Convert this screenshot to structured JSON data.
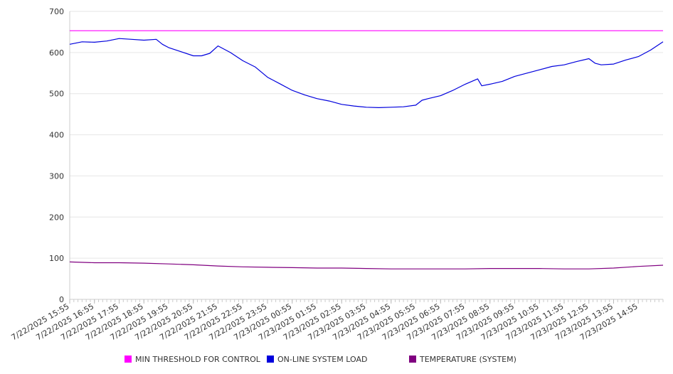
{
  "chart_data": {
    "type": "line",
    "title": "",
    "xlabel": "",
    "ylabel": "",
    "ylim": [
      0,
      700
    ],
    "yticks": [
      0,
      100,
      200,
      300,
      400,
      500,
      600,
      700
    ],
    "grid": true,
    "legend_position": "bottom",
    "x_tick_labels": [
      "7/22/2025 15:55",
      "7/22/2025 16:55",
      "7/22/2025 17:55",
      "7/22/2025 18:55",
      "7/22/2025 19:55",
      "7/22/2025 20:55",
      "7/22/2025 21:55",
      "7/22/2025 22:55",
      "7/22/2025 23:55",
      "7/23/2025 00:55",
      "7/23/2025 01:55",
      "7/23/2025 02:55",
      "7/23/2025 03:55",
      "7/23/2025 04:55",
      "7/23/2025 05:55",
      "7/23/2025 06:55",
      "7/23/2025 07:55",
      "7/23/2025 08:55",
      "7/23/2025 09:55",
      "7/23/2025 10:55",
      "7/23/2025 11:55",
      "7/23/2025 12:55",
      "7/23/2025 13:55",
      "7/23/2025 14:55"
    ],
    "series": [
      {
        "name": "MIN THRESHOLD FOR CONTROL",
        "color": "#ff00ff",
        "points": [
          [
            "7/22/2025 15:55",
            653
          ],
          [
            "7/23/2025 15:55",
            653
          ]
        ]
      },
      {
        "name": "ON-LINE SYSTEM LOAD",
        "color": "#0000dd",
        "points": [
          [
            "7/22/2025 15:55",
            620
          ],
          [
            "7/22/2025 16:25",
            626
          ],
          [
            "7/22/2025 16:55",
            625
          ],
          [
            "7/22/2025 17:25",
            628
          ],
          [
            "7/22/2025 17:55",
            634
          ],
          [
            "7/22/2025 18:25",
            632
          ],
          [
            "7/22/2025 18:55",
            630
          ],
          [
            "7/22/2025 19:25",
            632
          ],
          [
            "7/22/2025 19:40",
            620
          ],
          [
            "7/22/2025 19:55",
            612
          ],
          [
            "7/22/2025 20:25",
            602
          ],
          [
            "7/22/2025 20:55",
            592
          ],
          [
            "7/22/2025 21:15",
            592
          ],
          [
            "7/22/2025 21:35",
            598
          ],
          [
            "7/22/2025 21:55",
            616
          ],
          [
            "7/22/2025 22:25",
            600
          ],
          [
            "7/22/2025 22:55",
            580
          ],
          [
            "7/22/2025 23:25",
            565
          ],
          [
            "7/22/2025 23:55",
            540
          ],
          [
            "7/23/2025 00:25",
            524
          ],
          [
            "7/23/2025 00:55",
            508
          ],
          [
            "7/23/2025 01:25",
            497
          ],
          [
            "7/23/2025 01:55",
            488
          ],
          [
            "7/23/2025 02:25",
            482
          ],
          [
            "7/23/2025 02:55",
            474
          ],
          [
            "7/23/2025 03:25",
            470
          ],
          [
            "7/23/2025 03:55",
            467
          ],
          [
            "7/23/2025 04:25",
            466
          ],
          [
            "7/23/2025 04:55",
            467
          ],
          [
            "7/23/2025 05:25",
            468
          ],
          [
            "7/23/2025 05:55",
            472
          ],
          [
            "7/23/2025 06:10",
            484
          ],
          [
            "7/23/2025 06:25",
            488
          ],
          [
            "7/23/2025 06:55",
            495
          ],
          [
            "7/23/2025 07:25",
            508
          ],
          [
            "7/23/2025 07:55",
            523
          ],
          [
            "7/23/2025 08:25",
            536
          ],
          [
            "7/23/2025 08:35",
            519
          ],
          [
            "7/23/2025 08:55",
            523
          ],
          [
            "7/23/2025 09:25",
            530
          ],
          [
            "7/23/2025 09:55",
            542
          ],
          [
            "7/23/2025 10:25",
            550
          ],
          [
            "7/23/2025 10:55",
            558
          ],
          [
            "7/23/2025 11:25",
            566
          ],
          [
            "7/23/2025 11:55",
            570
          ],
          [
            "7/23/2025 12:25",
            578
          ],
          [
            "7/23/2025 12:55",
            585
          ],
          [
            "7/23/2025 13:10",
            574
          ],
          [
            "7/23/2025 13:25",
            570
          ],
          [
            "7/23/2025 13:55",
            572
          ],
          [
            "7/23/2025 14:25",
            582
          ],
          [
            "7/23/2025 14:55",
            590
          ],
          [
            "7/23/2025 15:25",
            606
          ],
          [
            "7/23/2025 15:55",
            626
          ]
        ]
      },
      {
        "name": "TEMPERATURE (SYSTEM)",
        "color": "#800080",
        "points": [
          [
            "7/22/2025 15:55",
            91
          ],
          [
            "7/22/2025 16:55",
            89
          ],
          [
            "7/22/2025 17:55",
            89
          ],
          [
            "7/22/2025 18:55",
            88
          ],
          [
            "7/22/2025 19:55",
            86
          ],
          [
            "7/22/2025 20:55",
            84
          ],
          [
            "7/22/2025 21:55",
            81
          ],
          [
            "7/22/2025 22:55",
            79
          ],
          [
            "7/22/2025 23:55",
            78
          ],
          [
            "7/23/2025 00:55",
            77
          ],
          [
            "7/23/2025 01:55",
            76
          ],
          [
            "7/23/2025 02:55",
            76
          ],
          [
            "7/23/2025 03:55",
            75
          ],
          [
            "7/23/2025 04:55",
            74
          ],
          [
            "7/23/2025 05:55",
            74
          ],
          [
            "7/23/2025 06:55",
            74
          ],
          [
            "7/23/2025 07:55",
            74
          ],
          [
            "7/23/2025 08:55",
            75
          ],
          [
            "7/23/2025 09:55",
            75
          ],
          [
            "7/23/2025 10:55",
            75
          ],
          [
            "7/23/2025 11:55",
            74
          ],
          [
            "7/23/2025 12:55",
            74
          ],
          [
            "7/23/2025 13:55",
            76
          ],
          [
            "7/23/2025 14:55",
            80
          ],
          [
            "7/23/2025 15:55",
            83
          ]
        ]
      }
    ]
  }
}
